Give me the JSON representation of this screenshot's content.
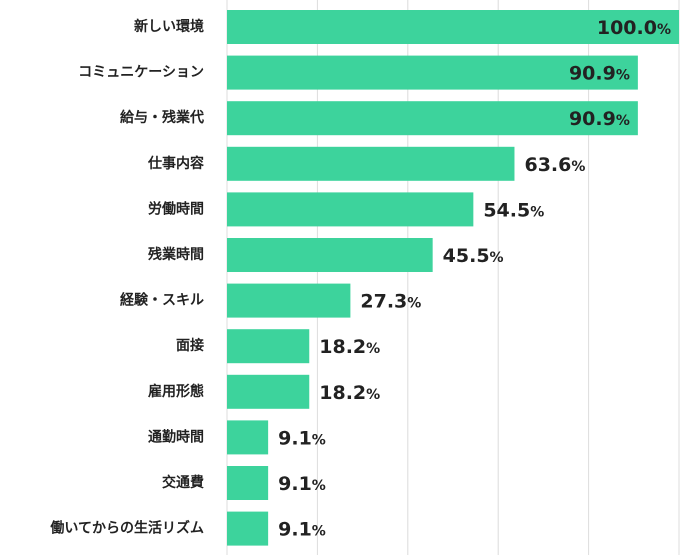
{
  "chart_data": {
    "type": "bar",
    "orientation": "horizontal",
    "categories": [
      "新しい環境",
      "コミュニケーション",
      "給与・残業代",
      "仕事内容",
      "労働時間",
      "残業時間",
      "経験・スキル",
      "面接",
      "雇用形態",
      "通勤時間",
      "交通費",
      "働いてからの生活リズム"
    ],
    "values": [
      100.0,
      90.9,
      90.9,
      63.6,
      54.5,
      45.5,
      27.3,
      18.2,
      18.2,
      9.1,
      9.1,
      9.1
    ],
    "value_labels": [
      "100.0",
      "90.9",
      "90.9",
      "63.6",
      "54.5",
      "45.5",
      "27.3",
      "18.2",
      "18.2",
      "9.1",
      "9.1",
      "9.1"
    ],
    "unit": "%",
    "xlim": [
      0,
      100
    ],
    "grid": true,
    "bar_color": "#3dd39c",
    "grid_color": "#dcdcdc"
  }
}
